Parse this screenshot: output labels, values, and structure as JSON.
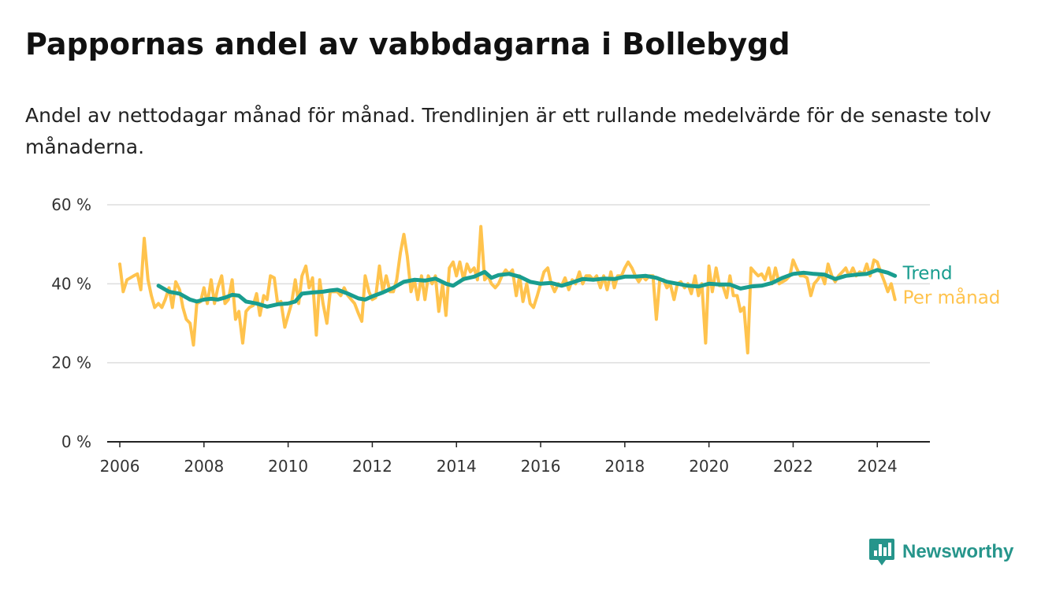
{
  "title": "Pappornas andel av vabbdagarna i Bollebygd",
  "subtitle": "Andel av nettodagar månad för månad. Trendlinjen är ett rullande medelvärde för de senaste tolv månaderna.",
  "brand": {
    "name": "Newsworthy",
    "icon": "newsworthy-logo-icon"
  },
  "colors": {
    "monthly": "#ffc34d",
    "trend": "#199d8f",
    "grid": "#dddddd",
    "axis": "#222222"
  },
  "chart_data": {
    "type": "line",
    "x_unit": "year",
    "y_unit": "%",
    "ylim": [
      0,
      60
    ],
    "xlim": [
      2005.7,
      2025.25
    ],
    "yticks": [
      0,
      20,
      40,
      60
    ],
    "ytick_labels": [
      "0 %",
      "20 %",
      "40 %",
      "60 %"
    ],
    "xticks": [
      2006,
      2008,
      2010,
      2012,
      2014,
      2016,
      2018,
      2020,
      2022,
      2024
    ],
    "xtick_labels": [
      "2006",
      "2008",
      "2010",
      "2012",
      "2014",
      "2016",
      "2018",
      "2020",
      "2022",
      "2024"
    ],
    "grid": true,
    "legend": "direct labels at right end of lines",
    "series": [
      {
        "name": "Per månad",
        "points": [
          [
            2006.0,
            45
          ],
          [
            2006.08,
            38
          ],
          [
            2006.17,
            41
          ],
          [
            2006.25,
            41.5
          ],
          [
            2006.33,
            42
          ],
          [
            2006.42,
            42.5
          ],
          [
            2006.5,
            38.5
          ],
          [
            2006.58,
            51.5
          ],
          [
            2006.67,
            41
          ],
          [
            2006.75,
            37
          ],
          [
            2006.83,
            34
          ],
          [
            2006.92,
            35
          ],
          [
            2007.0,
            34
          ],
          [
            2007.08,
            36
          ],
          [
            2007.17,
            39
          ],
          [
            2007.25,
            34
          ],
          [
            2007.33,
            40.5
          ],
          [
            2007.42,
            38.5
          ],
          [
            2007.5,
            34
          ],
          [
            2007.58,
            31
          ],
          [
            2007.67,
            30
          ],
          [
            2007.75,
            24.5
          ],
          [
            2007.83,
            35
          ],
          [
            2007.92,
            35.5
          ],
          [
            2008.0,
            39
          ],
          [
            2008.08,
            35
          ],
          [
            2008.17,
            41
          ],
          [
            2008.25,
            35
          ],
          [
            2008.33,
            39
          ],
          [
            2008.42,
            42
          ],
          [
            2008.5,
            35
          ],
          [
            2008.58,
            36
          ],
          [
            2008.67,
            41
          ],
          [
            2008.75,
            31
          ],
          [
            2008.83,
            33
          ],
          [
            2008.92,
            25
          ],
          [
            2009.0,
            33
          ],
          [
            2009.08,
            34
          ],
          [
            2009.17,
            34.5
          ],
          [
            2009.25,
            37.5
          ],
          [
            2009.33,
            32
          ],
          [
            2009.42,
            37
          ],
          [
            2009.5,
            36
          ],
          [
            2009.58,
            42
          ],
          [
            2009.67,
            41.5
          ],
          [
            2009.75,
            35
          ],
          [
            2009.83,
            35.5
          ],
          [
            2009.92,
            29
          ],
          [
            2010.0,
            32
          ],
          [
            2010.08,
            35
          ],
          [
            2010.17,
            41
          ],
          [
            2010.25,
            35
          ],
          [
            2010.33,
            42
          ],
          [
            2010.42,
            44.5
          ],
          [
            2010.5,
            39
          ],
          [
            2010.58,
            41.5
          ],
          [
            2010.67,
            27
          ],
          [
            2010.75,
            41
          ],
          [
            2010.83,
            35
          ],
          [
            2010.92,
            30
          ],
          [
            2011.0,
            38
          ],
          [
            2011.08,
            38
          ],
          [
            2011.17,
            38
          ],
          [
            2011.25,
            37
          ],
          [
            2011.33,
            39
          ],
          [
            2011.42,
            37
          ],
          [
            2011.5,
            36
          ],
          [
            2011.58,
            35
          ],
          [
            2011.67,
            32.5
          ],
          [
            2011.75,
            30.5
          ],
          [
            2011.83,
            42
          ],
          [
            2011.92,
            38
          ],
          [
            2012.0,
            36
          ],
          [
            2012.08,
            36.5
          ],
          [
            2012.17,
            44.5
          ],
          [
            2012.25,
            38
          ],
          [
            2012.33,
            42
          ],
          [
            2012.42,
            38
          ],
          [
            2012.5,
            38
          ],
          [
            2012.58,
            41
          ],
          [
            2012.67,
            48
          ],
          [
            2012.75,
            52.5
          ],
          [
            2012.83,
            47
          ],
          [
            2012.92,
            38
          ],
          [
            2013.0,
            41
          ],
          [
            2013.08,
            36
          ],
          [
            2013.17,
            42
          ],
          [
            2013.25,
            36
          ],
          [
            2013.33,
            42
          ],
          [
            2013.42,
            40
          ],
          [
            2013.5,
            42
          ],
          [
            2013.58,
            33
          ],
          [
            2013.67,
            40
          ],
          [
            2013.75,
            32
          ],
          [
            2013.83,
            44
          ],
          [
            2013.92,
            45.5
          ],
          [
            2014.0,
            42
          ],
          [
            2014.08,
            45.5
          ],
          [
            2014.17,
            41
          ],
          [
            2014.25,
            45
          ],
          [
            2014.33,
            43
          ],
          [
            2014.42,
            44
          ],
          [
            2014.5,
            41
          ],
          [
            2014.58,
            54.5
          ],
          [
            2014.67,
            41
          ],
          [
            2014.75,
            42
          ],
          [
            2014.83,
            40
          ],
          [
            2014.92,
            39
          ],
          [
            2015.0,
            40
          ],
          [
            2015.08,
            42
          ],
          [
            2015.17,
            43.5
          ],
          [
            2015.25,
            42.5
          ],
          [
            2015.33,
            43.5
          ],
          [
            2015.42,
            37
          ],
          [
            2015.5,
            42
          ],
          [
            2015.58,
            35.5
          ],
          [
            2015.67,
            40
          ],
          [
            2015.75,
            35
          ],
          [
            2015.83,
            34
          ],
          [
            2015.92,
            37
          ],
          [
            2016.0,
            40
          ],
          [
            2016.08,
            43
          ],
          [
            2016.17,
            44
          ],
          [
            2016.25,
            40
          ],
          [
            2016.33,
            38
          ],
          [
            2016.42,
            40
          ],
          [
            2016.5,
            39.5
          ],
          [
            2016.58,
            41.5
          ],
          [
            2016.67,
            38.5
          ],
          [
            2016.75,
            41
          ],
          [
            2016.83,
            40
          ],
          [
            2016.92,
            43
          ],
          [
            2017.0,
            40
          ],
          [
            2017.08,
            42
          ],
          [
            2017.17,
            42
          ],
          [
            2017.25,
            41
          ],
          [
            2017.33,
            42
          ],
          [
            2017.42,
            39
          ],
          [
            2017.5,
            42
          ],
          [
            2017.58,
            38.5
          ],
          [
            2017.67,
            43
          ],
          [
            2017.75,
            39
          ],
          [
            2017.83,
            42
          ],
          [
            2017.92,
            42
          ],
          [
            2018.0,
            44
          ],
          [
            2018.08,
            45.5
          ],
          [
            2018.17,
            44
          ],
          [
            2018.25,
            42
          ],
          [
            2018.33,
            40.5
          ],
          [
            2018.42,
            42
          ],
          [
            2018.5,
            41
          ],
          [
            2018.58,
            42
          ],
          [
            2018.67,
            42
          ],
          [
            2018.75,
            31
          ],
          [
            2018.83,
            41
          ],
          [
            2018.92,
            41
          ],
          [
            2019.0,
            39
          ],
          [
            2019.08,
            40
          ],
          [
            2019.17,
            36
          ],
          [
            2019.25,
            40
          ],
          [
            2019.33,
            40.5
          ],
          [
            2019.42,
            39
          ],
          [
            2019.5,
            40
          ],
          [
            2019.58,
            37.5
          ],
          [
            2019.67,
            42
          ],
          [
            2019.75,
            37
          ],
          [
            2019.83,
            40
          ],
          [
            2019.92,
            25
          ],
          [
            2020.0,
            44.5
          ],
          [
            2020.08,
            38
          ],
          [
            2020.17,
            44
          ],
          [
            2020.25,
            39.5
          ],
          [
            2020.33,
            39.5
          ],
          [
            2020.42,
            36.5
          ],
          [
            2020.5,
            42
          ],
          [
            2020.58,
            37
          ],
          [
            2020.67,
            37
          ],
          [
            2020.75,
            33
          ],
          [
            2020.83,
            34
          ],
          [
            2020.92,
            22.5
          ],
          [
            2021.0,
            44
          ],
          [
            2021.08,
            43
          ],
          [
            2021.17,
            42
          ],
          [
            2021.25,
            42.5
          ],
          [
            2021.33,
            41
          ],
          [
            2021.42,
            44
          ],
          [
            2021.5,
            40
          ],
          [
            2021.58,
            44
          ],
          [
            2021.67,
            40
          ],
          [
            2021.75,
            40.5
          ],
          [
            2021.83,
            41
          ],
          [
            2021.92,
            42
          ],
          [
            2022.0,
            46
          ],
          [
            2022.08,
            44
          ],
          [
            2022.17,
            42
          ],
          [
            2022.25,
            42
          ],
          [
            2022.33,
            41.5
          ],
          [
            2022.42,
            37
          ],
          [
            2022.5,
            40
          ],
          [
            2022.58,
            41
          ],
          [
            2022.67,
            42.5
          ],
          [
            2022.75,
            40
          ],
          [
            2022.83,
            45
          ],
          [
            2022.92,
            42
          ],
          [
            2023.0,
            40.5
          ],
          [
            2023.08,
            42
          ],
          [
            2023.17,
            43
          ],
          [
            2023.25,
            44
          ],
          [
            2023.33,
            42
          ],
          [
            2023.42,
            44
          ],
          [
            2023.5,
            42
          ],
          [
            2023.58,
            43
          ],
          [
            2023.67,
            42.5
          ],
          [
            2023.75,
            45
          ],
          [
            2023.83,
            42
          ],
          [
            2023.92,
            46
          ],
          [
            2024.0,
            45.5
          ],
          [
            2024.08,
            43
          ],
          [
            2024.17,
            40.5
          ],
          [
            2024.25,
            38
          ],
          [
            2024.33,
            40
          ],
          [
            2024.42,
            36
          ]
        ]
      },
      {
        "name": "Trend",
        "points": [
          [
            2006.92,
            39.5
          ],
          [
            2007.17,
            38
          ],
          [
            2007.42,
            37.5
          ],
          [
            2007.67,
            36
          ],
          [
            2007.83,
            35.5
          ],
          [
            2008.0,
            36
          ],
          [
            2008.17,
            36.2
          ],
          [
            2008.33,
            36
          ],
          [
            2008.5,
            36.5
          ],
          [
            2008.67,
            37.2
          ],
          [
            2008.83,
            37
          ],
          [
            2009.0,
            35.5
          ],
          [
            2009.25,
            35
          ],
          [
            2009.5,
            34.2
          ],
          [
            2009.75,
            34.8
          ],
          [
            2010.0,
            35
          ],
          [
            2010.17,
            35.5
          ],
          [
            2010.33,
            37.5
          ],
          [
            2010.58,
            37.8
          ],
          [
            2010.83,
            38
          ],
          [
            2011.0,
            38.3
          ],
          [
            2011.17,
            38.5
          ],
          [
            2011.42,
            37.5
          ],
          [
            2011.67,
            36.3
          ],
          [
            2011.83,
            36
          ],
          [
            2012.0,
            36.8
          ],
          [
            2012.25,
            37.8
          ],
          [
            2012.5,
            39
          ],
          [
            2012.75,
            40.5
          ],
          [
            2013.0,
            41
          ],
          [
            2013.25,
            40.8
          ],
          [
            2013.5,
            41.3
          ],
          [
            2013.75,
            40
          ],
          [
            2013.92,
            39.5
          ],
          [
            2014.17,
            41.2
          ],
          [
            2014.42,
            41.8
          ],
          [
            2014.67,
            43
          ],
          [
            2014.83,
            41.5
          ],
          [
            2015.0,
            42.2
          ],
          [
            2015.25,
            42.5
          ],
          [
            2015.5,
            41.8
          ],
          [
            2015.75,
            40.5
          ],
          [
            2016.0,
            40
          ],
          [
            2016.25,
            40.2
          ],
          [
            2016.5,
            39.5
          ],
          [
            2016.75,
            40.3
          ],
          [
            2017.0,
            41.2
          ],
          [
            2017.25,
            41
          ],
          [
            2017.5,
            41.3
          ],
          [
            2017.75,
            41.2
          ],
          [
            2018.0,
            41.8
          ],
          [
            2018.25,
            41.8
          ],
          [
            2018.5,
            42
          ],
          [
            2018.75,
            41.5
          ],
          [
            2019.0,
            40.5
          ],
          [
            2019.25,
            40
          ],
          [
            2019.5,
            39.5
          ],
          [
            2019.75,
            39.3
          ],
          [
            2020.0,
            40
          ],
          [
            2020.25,
            39.8
          ],
          [
            2020.5,
            39.8
          ],
          [
            2020.75,
            38.8
          ],
          [
            2021.0,
            39.3
          ],
          [
            2021.25,
            39.5
          ],
          [
            2021.5,
            40.2
          ],
          [
            2021.75,
            41.5
          ],
          [
            2022.0,
            42.5
          ],
          [
            2022.25,
            42.8
          ],
          [
            2022.5,
            42.5
          ],
          [
            2022.75,
            42.3
          ],
          [
            2023.0,
            41.2
          ],
          [
            2023.25,
            42
          ],
          [
            2023.5,
            42.3
          ],
          [
            2023.75,
            42.5
          ],
          [
            2024.0,
            43.5
          ],
          [
            2024.25,
            42.8
          ],
          [
            2024.42,
            42
          ]
        ]
      }
    ]
  }
}
